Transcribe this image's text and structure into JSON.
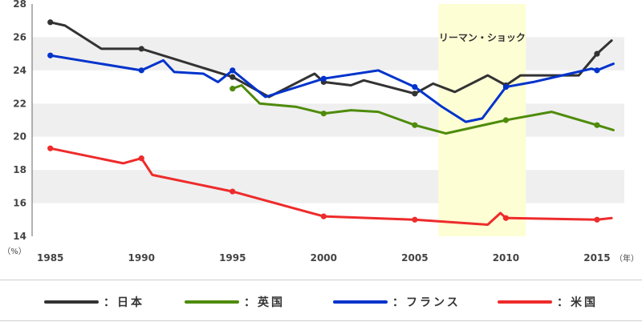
{
  "chart_data": {
    "type": "line",
    "ylim": [
      14,
      28
    ],
    "xlim": [
      1984,
      2016.5
    ],
    "x_ticks": [
      "1985",
      "1990",
      "1995",
      "2000",
      "2005",
      "2010",
      "2015"
    ],
    "y_ticks": [
      "14",
      "16",
      "18",
      "20",
      "22",
      "24",
      "26",
      "28"
    ],
    "y_unit": "（%）",
    "x_unit": "（年）",
    "grid": "horizontal bands",
    "highlight": {
      "label": "リーマン・ショック",
      "x_start": 2006.3,
      "x_end": 2011.1,
      "color": "#fefed5"
    },
    "series": [
      {
        "name": "：日本",
        "color": "#333333",
        "points": [
          [
            1985,
            26.9
          ],
          [
            1985.8,
            26.7
          ],
          [
            1987.8,
            25.3
          ],
          [
            1990,
            25.3
          ],
          [
            1995,
            23.6
          ],
          [
            1997,
            22.4
          ],
          [
            1999.5,
            23.8
          ],
          [
            2000,
            23.3
          ],
          [
            2001.5,
            23.1
          ],
          [
            2002.2,
            23.4
          ],
          [
            2005,
            22.6
          ],
          [
            2006,
            23.2
          ],
          [
            2007.2,
            22.7
          ],
          [
            2009,
            23.7
          ],
          [
            2010,
            23.1
          ],
          [
            2010.8,
            23.7
          ],
          [
            2012,
            23.7
          ],
          [
            2014,
            23.7
          ],
          [
            2015,
            25.0
          ],
          [
            2015.8,
            25.8
          ]
        ],
        "markers": [
          1985,
          1990,
          1995,
          2000,
          2005,
          2010,
          2015
        ]
      },
      {
        "name": "：英国",
        "color": "#4e8b0a",
        "points": [
          [
            1995,
            22.9
          ],
          [
            1995.5,
            23.1
          ],
          [
            1996.5,
            22.0
          ],
          [
            1998.5,
            21.8
          ],
          [
            2000,
            21.4
          ],
          [
            2001.5,
            21.6
          ],
          [
            2003,
            21.5
          ],
          [
            2005,
            20.7
          ],
          [
            2006.7,
            20.2
          ],
          [
            2010,
            21.0
          ],
          [
            2012.5,
            21.5
          ],
          [
            2015,
            20.7
          ],
          [
            2015.9,
            20.4
          ]
        ],
        "markers": [
          1995,
          2000,
          2005,
          2010,
          2015
        ]
      },
      {
        "name": "：フランス",
        "color": "#0033cc",
        "points": [
          [
            1985,
            24.9
          ],
          [
            1990,
            24.0
          ],
          [
            1991.2,
            24.6
          ],
          [
            1991.8,
            23.9
          ],
          [
            1993.4,
            23.8
          ],
          [
            1994.2,
            23.3
          ],
          [
            1995,
            24.0
          ],
          [
            1996.8,
            22.4
          ],
          [
            2000,
            23.5
          ],
          [
            2003,
            24.0
          ],
          [
            2005,
            23.0
          ],
          [
            2006.5,
            21.8
          ],
          [
            2007.8,
            20.9
          ],
          [
            2008.7,
            21.1
          ],
          [
            2010,
            23.0
          ],
          [
            2011.5,
            23.3
          ],
          [
            2013.5,
            23.8
          ],
          [
            2014.7,
            24.1
          ],
          [
            2015,
            24.0
          ],
          [
            2015.9,
            24.4
          ]
        ],
        "markers": [
          1985,
          1990,
          1995,
          2000,
          2005,
          2010,
          2015
        ]
      },
      {
        "name": "：米国",
        "color": "#ee2b2b",
        "points": [
          [
            1985,
            19.3
          ],
          [
            1989,
            18.4
          ],
          [
            1990,
            18.7
          ],
          [
            1990.6,
            17.7
          ],
          [
            1995,
            16.7
          ],
          [
            2000,
            15.2
          ],
          [
            2005,
            15.0
          ],
          [
            2009,
            14.7
          ],
          [
            2009.7,
            15.4
          ],
          [
            2010,
            15.1
          ],
          [
            2015,
            15.0
          ],
          [
            2015.8,
            15.1
          ]
        ],
        "markers": [
          1985,
          1990,
          1995,
          2000,
          2005,
          2010,
          2015
        ]
      }
    ]
  }
}
